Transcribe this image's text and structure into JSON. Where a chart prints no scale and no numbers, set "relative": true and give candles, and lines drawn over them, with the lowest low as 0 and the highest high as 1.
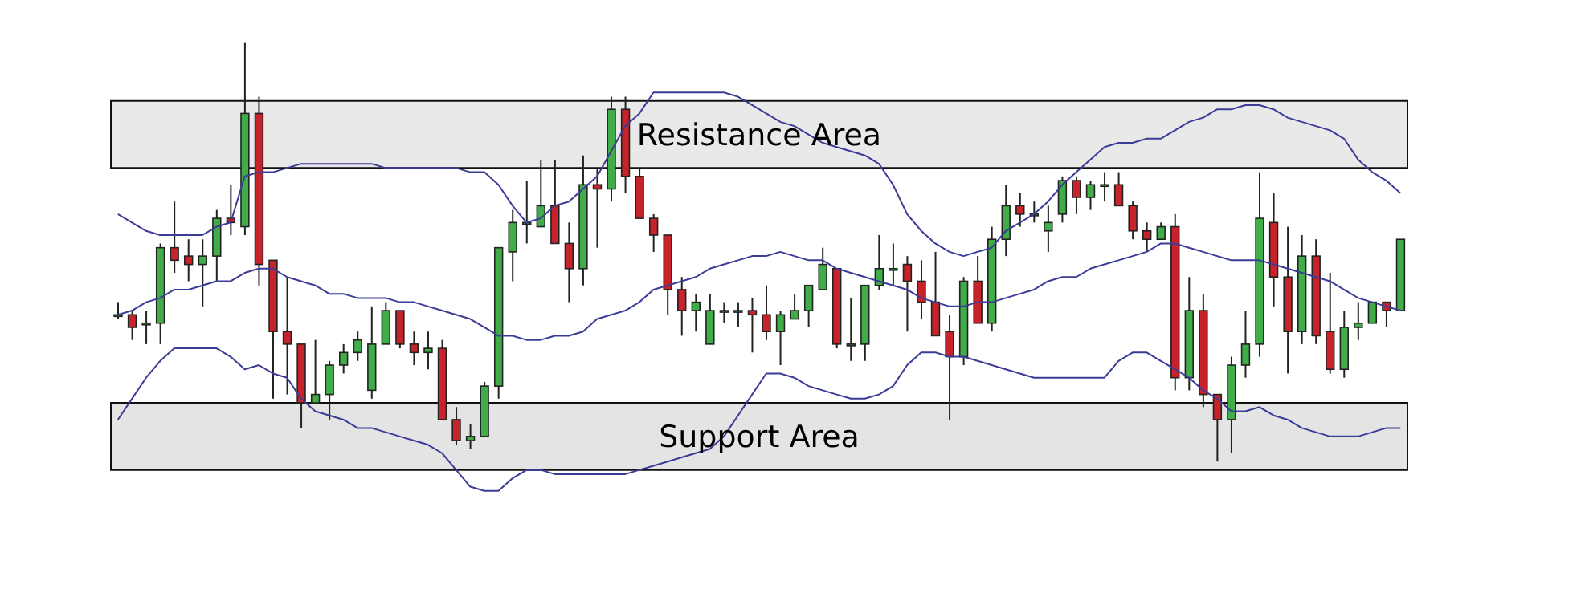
{
  "chart_data": {
    "type": "candlestick",
    "relative": true,
    "tick_labels": false,
    "categories": [
      null,
      null,
      null,
      null,
      null,
      null,
      null,
      null,
      null,
      null,
      null,
      null,
      null,
      null,
      null,
      null,
      null,
      null,
      null,
      null,
      null,
      null,
      null,
      null,
      null,
      null,
      null,
      null,
      null,
      null,
      null,
      null,
      null,
      null,
      null,
      null,
      null,
      null,
      null,
      null,
      null,
      null,
      null,
      null,
      null,
      null,
      null,
      null,
      null,
      null,
      null,
      null,
      null,
      null,
      null,
      null,
      null,
      null,
      null,
      null,
      null,
      null,
      null,
      null,
      null,
      null,
      null,
      null,
      null,
      null,
      null,
      null,
      null,
      null,
      null,
      null,
      null,
      null,
      null,
      null,
      null,
      null,
      null,
      null,
      null,
      null,
      null,
      null,
      null,
      null,
      null,
      null
    ],
    "ohlc": [
      [
        0.35,
        0.38,
        0.34,
        0.35
      ],
      [
        0.35,
        0.36,
        0.29,
        0.32
      ],
      [
        0.33,
        0.36,
        0.28,
        0.33
      ],
      [
        0.33,
        0.52,
        0.28,
        0.51
      ],
      [
        0.51,
        0.62,
        0.45,
        0.48
      ],
      [
        0.49,
        0.53,
        0.43,
        0.47
      ],
      [
        0.47,
        0.53,
        0.37,
        0.49
      ],
      [
        0.49,
        0.6,
        0.43,
        0.58
      ],
      [
        0.58,
        0.66,
        0.54,
        0.57
      ],
      [
        0.56,
        1,
        0.54,
        0.83
      ],
      [
        0.83,
        0.87,
        0.42,
        0.47
      ],
      [
        0.48,
        0.48,
        0.15,
        0.31
      ],
      [
        0.31,
        0.44,
        0.16,
        0.28
      ],
      [
        0.28,
        0.28,
        0.08,
        0.14
      ],
      [
        0.14,
        0.29,
        0.14,
        0.16
      ],
      [
        0.16,
        0.24,
        0.1,
        0.23
      ],
      [
        0.23,
        0.28,
        0.21,
        0.26
      ],
      [
        0.26,
        0.31,
        0.24,
        0.29
      ],
      [
        0.17,
        0.37,
        0.15,
        0.28
      ],
      [
        0.28,
        0.38,
        0.28,
        0.36
      ],
      [
        0.36,
        0.36,
        0.27,
        0.28
      ],
      [
        0.28,
        0.31,
        0.23,
        0.26
      ],
      [
        0.26,
        0.31,
        0.22,
        0.27
      ],
      [
        0.27,
        0.29,
        0.1,
        0.1
      ],
      [
        0.1,
        0.13,
        0.04,
        0.05
      ],
      [
        0.05,
        0.09,
        0.03,
        0.06
      ],
      [
        0.06,
        0.19,
        0.06,
        0.18
      ],
      [
        0.18,
        0.51,
        0.15,
        0.51
      ],
      [
        0.5,
        0.6,
        0.43,
        0.57
      ],
      [
        0.57,
        0.67,
        0.52,
        0.57
      ],
      [
        0.56,
        0.72,
        0.56,
        0.61
      ],
      [
        0.61,
        0.72,
        0.52,
        0.52
      ],
      [
        0.52,
        0.57,
        0.38,
        0.46
      ],
      [
        0.46,
        0.73,
        0.42,
        0.66
      ],
      [
        0.66,
        0.7,
        0.51,
        0.65
      ],
      [
        0.65,
        0.87,
        0.62,
        0.84
      ],
      [
        0.84,
        0.87,
        0.64,
        0.68
      ],
      [
        0.68,
        0.7,
        0.58,
        0.58
      ],
      [
        0.58,
        0.59,
        0.5,
        0.54
      ],
      [
        0.54,
        0.54,
        0.35,
        0.41
      ],
      [
        0.41,
        0.44,
        0.3,
        0.36
      ],
      [
        0.36,
        0.4,
        0.31,
        0.38
      ],
      [
        0.28,
        0.4,
        0.28,
        0.36
      ],
      [
        0.36,
        0.38,
        0.33,
        0.36
      ],
      [
        0.36,
        0.38,
        0.32,
        0.36
      ],
      [
        0.36,
        0.39,
        0.26,
        0.35
      ],
      [
        0.35,
        0.42,
        0.29,
        0.31
      ],
      [
        0.31,
        0.36,
        0.23,
        0.35
      ],
      [
        0.34,
        0.4,
        0.34,
        0.36
      ],
      [
        0.36,
        0.42,
        0.32,
        0.42
      ],
      [
        0.41,
        0.51,
        0.41,
        0.47
      ],
      [
        0.46,
        0.46,
        0.27,
        0.28
      ],
      [
        0.28,
        0.39,
        0.24,
        0.28
      ],
      [
        0.28,
        0.42,
        0.24,
        0.42
      ],
      [
        0.42,
        0.54,
        0.41,
        0.46
      ],
      [
        0.46,
        0.52,
        0.42,
        0.46
      ],
      [
        0.47,
        0.49,
        0.31,
        0.43
      ],
      [
        0.43,
        0.48,
        0.34,
        0.38
      ],
      [
        0.38,
        0.5,
        0.3,
        0.3
      ],
      [
        0.31,
        0.35,
        0.1,
        0.25
      ],
      [
        0.25,
        0.44,
        0.23,
        0.43
      ],
      [
        0.43,
        0.49,
        0.33,
        0.33
      ],
      [
        0.33,
        0.56,
        0.31,
        0.53
      ],
      [
        0.53,
        0.66,
        0.49,
        0.61
      ],
      [
        0.61,
        0.64,
        0.56,
        0.59
      ],
      [
        0.59,
        0.62,
        0.57,
        0.59
      ],
      [
        0.55,
        0.61,
        0.5,
        0.57
      ],
      [
        0.59,
        0.68,
        0.57,
        0.67
      ],
      [
        0.67,
        0.68,
        0.59,
        0.63
      ],
      [
        0.63,
        0.67,
        0.6,
        0.66
      ],
      [
        0.66,
        0.69,
        0.62,
        0.66
      ],
      [
        0.66,
        0.69,
        0.61,
        0.61
      ],
      [
        0.61,
        0.62,
        0.53,
        0.55
      ],
      [
        0.55,
        0.57,
        0.5,
        0.53
      ],
      [
        0.53,
        0.57,
        0.53,
        0.56
      ],
      [
        0.56,
        0.59,
        0.17,
        0.2
      ],
      [
        0.2,
        0.44,
        0.17,
        0.36
      ],
      [
        0.36,
        0.4,
        0.13,
        0.16
      ],
      [
        0.16,
        0.16,
        0,
        0.1
      ],
      [
        0.1,
        0.25,
        0.02,
        0.23
      ],
      [
        0.23,
        0.36,
        0.2,
        0.28
      ],
      [
        0.28,
        0.69,
        0.25,
        0.58
      ],
      [
        0.57,
        0.64,
        0.37,
        0.44
      ],
      [
        0.44,
        0.56,
        0.21,
        0.31
      ],
      [
        0.31,
        0.54,
        0.28,
        0.49
      ],
      [
        0.49,
        0.53,
        0.28,
        0.3
      ],
      [
        0.31,
        0.45,
        0.21,
        0.22
      ],
      [
        0.22,
        0.36,
        0.2,
        0.32
      ],
      [
        0.32,
        0.38,
        0.29,
        0.33
      ],
      [
        0.33,
        0.38,
        0.33,
        0.38
      ],
      [
        0.38,
        0.38,
        0.32,
        0.36
      ],
      [
        0.36,
        0.53,
        0.36,
        0.53
      ]
    ],
    "series": [
      {
        "type": "line",
        "color": "#3b3b98",
        "values": [
          0.59,
          0.57,
          0.55,
          0.54,
          0.54,
          0.54,
          0.54,
          0.56,
          0.57,
          0.68,
          0.69,
          0.69,
          0.7,
          0.71,
          0.71,
          0.71,
          0.71,
          0.71,
          0.71,
          0.7,
          0.7,
          0.7,
          0.7,
          0.7,
          0.7,
          0.69,
          0.69,
          0.66,
          0.61,
          0.57,
          0.58,
          0.61,
          0.62,
          0.65,
          0.68,
          0.74,
          0.8,
          0.83,
          0.88,
          0.88,
          0.88,
          0.88,
          0.88,
          0.88,
          0.87,
          0.85,
          0.83,
          0.81,
          0.8,
          0.78,
          0.76,
          0.75,
          0.74,
          0.73,
          0.71,
          0.66,
          0.59,
          0.55,
          0.52,
          0.5,
          0.49,
          0.5,
          0.51,
          0.55,
          0.57,
          0.59,
          0.62,
          0.66,
          0.69,
          0.72,
          0.75,
          0.76,
          0.76,
          0.77,
          0.77,
          0.79,
          0.81,
          0.82,
          0.84,
          0.84,
          0.85,
          0.85,
          0.84,
          0.82,
          0.81,
          0.8,
          0.79,
          0.77,
          0.72,
          0.69,
          0.67,
          0.64
        ]
      },
      {
        "type": "line",
        "color": "#3b3b98",
        "values": [
          0.35,
          0.36,
          0.38,
          0.39,
          0.41,
          0.41,
          0.42,
          0.43,
          0.43,
          0.45,
          0.46,
          0.46,
          0.44,
          0.43,
          0.42,
          0.4,
          0.4,
          0.39,
          0.39,
          0.39,
          0.38,
          0.38,
          0.37,
          0.36,
          0.35,
          0.34,
          0.32,
          0.3,
          0.3,
          0.29,
          0.29,
          0.3,
          0.3,
          0.31,
          0.34,
          0.35,
          0.36,
          0.38,
          0.41,
          0.42,
          0.43,
          0.44,
          0.46,
          0.47,
          0.48,
          0.49,
          0.49,
          0.5,
          0.49,
          0.48,
          0.48,
          0.46,
          0.45,
          0.44,
          0.43,
          0.42,
          0.41,
          0.39,
          0.38,
          0.37,
          0.37,
          0.38,
          0.38,
          0.39,
          0.4,
          0.41,
          0.43,
          0.44,
          0.44,
          0.46,
          0.47,
          0.48,
          0.49,
          0.5,
          0.52,
          0.52,
          0.51,
          0.5,
          0.49,
          0.48,
          0.48,
          0.48,
          0.47,
          0.46,
          0.45,
          0.44,
          0.43,
          0.41,
          0.39,
          0.38,
          0.37,
          0.36
        ]
      },
      {
        "type": "line",
        "color": "#3b3b98",
        "values": [
          0.1,
          0.15,
          0.2,
          0.24,
          0.27,
          0.27,
          0.27,
          0.27,
          0.25,
          0.22,
          0.23,
          0.21,
          0.2,
          0.15,
          0.12,
          0.11,
          0.1,
          0.08,
          0.08,
          0.07,
          0.06,
          0.05,
          0.04,
          0.02,
          -0.02,
          -0.06,
          -0.07,
          -0.07,
          -0.04,
          -0.02,
          -0.02,
          -0.03,
          -0.03,
          -0.03,
          -0.03,
          -0.03,
          -0.03,
          -0.02,
          -0.01,
          0,
          0.01,
          0.02,
          0.03,
          0.06,
          0.11,
          0.16,
          0.21,
          0.21,
          0.2,
          0.18,
          0.17,
          0.16,
          0.15,
          0.15,
          0.16,
          0.18,
          0.23,
          0.26,
          0.26,
          0.25,
          0.25,
          0.24,
          0.23,
          0.22,
          0.21,
          0.2,
          0.2,
          0.2,
          0.2,
          0.2,
          0.2,
          0.24,
          0.26,
          0.26,
          0.24,
          0.22,
          0.2,
          0.17,
          0.15,
          0.12,
          0.12,
          0.13,
          0.11,
          0.1,
          0.08,
          0.07,
          0.06,
          0.06,
          0.06,
          0.07,
          0.08,
          0.08
        ]
      }
    ],
    "bands": [
      {
        "axis": "y",
        "from": 0.7,
        "to": 0.86,
        "label": "Resistance Area",
        "color": "#e0e0e0"
      },
      {
        "axis": "y",
        "from": -0.02,
        "to": 0.14,
        "label": "Support Area",
        "color": "#d9d9d9"
      }
    ]
  }
}
